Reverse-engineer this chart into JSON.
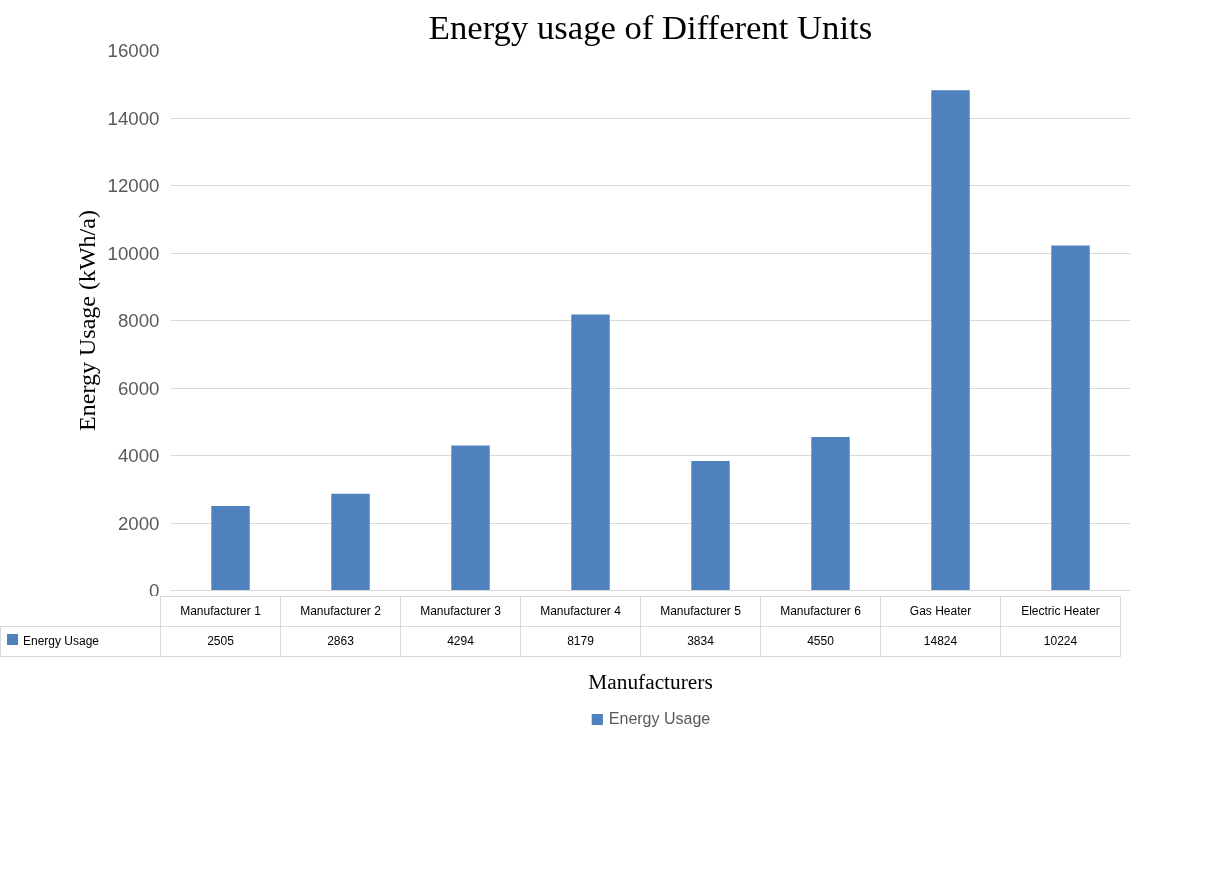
{
  "chart_data": {
    "type": "bar",
    "title": "Energy usage of Different Units",
    "xlabel": "Manufacturers",
    "ylabel": "Energy Usage (kWh/a)",
    "categories": [
      "Manufacturer 1",
      "Manufacturer 2",
      "Manufacturer 3",
      "Manufacturer 4",
      "Manufacturer 5",
      "Manufacturer 6",
      "Gas Heater",
      "Electric Heater"
    ],
    "series": [
      {
        "name": "Energy Usage",
        "color": "#4f81bd",
        "values": [
          2505,
          2863,
          4294,
          8179,
          3834,
          4550,
          14824,
          10224
        ]
      }
    ],
    "ylim": [
      0,
      16000
    ],
    "yticks": [
      0,
      2000,
      4000,
      6000,
      8000,
      10000,
      12000,
      14000,
      16000
    ],
    "grid": "y",
    "legend": "bottom",
    "data_labels": true
  }
}
